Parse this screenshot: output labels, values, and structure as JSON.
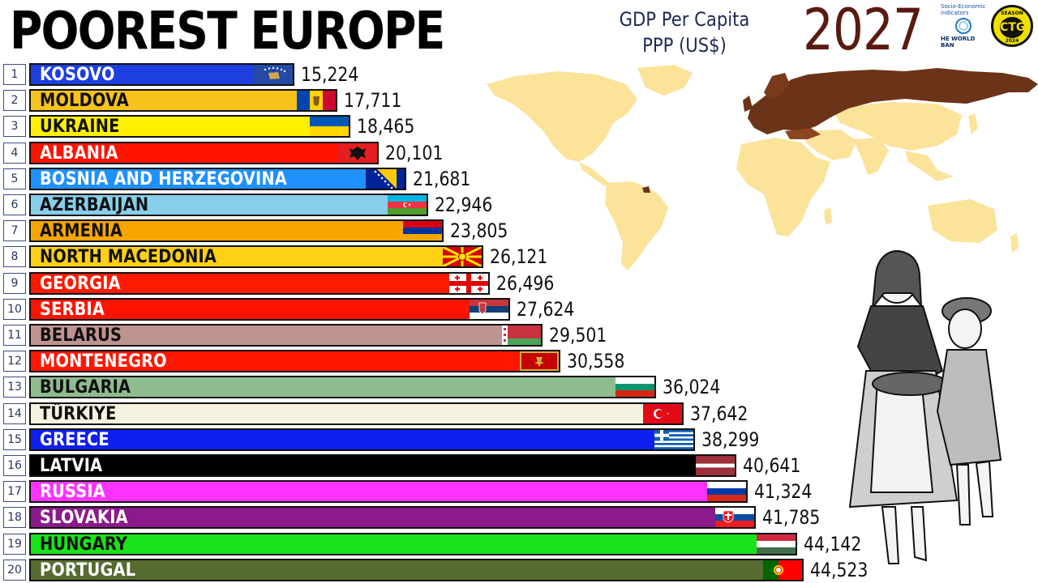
{
  "title": "POOREST EUROPE",
  "subtitle_line1": "GDP Per Capita",
  "subtitle_line2": "PPP (US$)",
  "year": "2027",
  "logos": {
    "worldbank_line1": "Socio-Economic",
    "worldbank_line2": "indicators",
    "worldbank_name": "HE WORLD BAN",
    "season_top": "SEASON",
    "season_mid": "CTG",
    "season_bottom": "2024"
  },
  "colors": {
    "map_land": "#fbe39a",
    "map_highlight": "#6b3318",
    "year": "#5a1a10",
    "subtitle": "#1e2a55"
  },
  "chart_data": {
    "type": "bar",
    "orientation": "horizontal",
    "title": "POOREST EUROPE",
    "subtitle": "GDP Per Capita PPP (US$)",
    "period": "2027",
    "xlim": [
      0,
      44523
    ],
    "categories": [
      "KOSOVO",
      "MOLDOVA",
      "UKRAINE",
      "ALBANIA",
      "BOSNIA AND HERZEGOVINA",
      "AZERBAIJAN",
      "ARMENIA",
      "NORTH MACEDONIA",
      "GEORGIA",
      "SERBIA",
      "BELARUS",
      "MONTENEGRO",
      "BULGARIA",
      "TÜRKIYE",
      "GREECE",
      "LATVIA",
      "RUSSIA",
      "SLOVAKIA",
      "HUNGARY",
      "PORTUGAL"
    ],
    "ranks": [
      "1",
      "2",
      "3",
      "4",
      "5",
      "6",
      "7",
      "8",
      "9",
      "10",
      "11",
      "12",
      "13",
      "14",
      "15",
      "16",
      "17",
      "18",
      "19",
      "20"
    ],
    "values": [
      15224,
      17711,
      18465,
      20101,
      21681,
      22946,
      23805,
      26121,
      26496,
      27624,
      29501,
      30558,
      36024,
      37642,
      38299,
      40641,
      41324,
      41785,
      44142,
      44523
    ],
    "value_labels": [
      "15,224",
      "17,711",
      "18,465",
      "20,101",
      "21,681",
      "22,946",
      "23,805",
      "26,121",
      "26,496",
      "27,624",
      "29,501",
      "30,558",
      "36,024",
      "37,642",
      "38,299",
      "40,641",
      "41,324",
      "41,785",
      "44,142",
      "44,523"
    ],
    "bar_colors": [
      "#1d3fe0",
      "#f8c21c",
      "#fff000",
      "#ff1200",
      "#1e90ff",
      "#87ceeb",
      "#f7a500",
      "#ffd015",
      "#ff1900",
      "#ff1200",
      "#bf9490",
      "#ff1600",
      "#8fbc8f",
      "#f5f2e0",
      "#0f1ff0",
      "#000000",
      "#ff33ff",
      "#8b1a8b",
      "#19e319",
      "#556b2f"
    ],
    "label_colors": [
      "#ffffff",
      "#111111",
      "#111111",
      "#ffffff",
      "#ffffff",
      "#111111",
      "#111111",
      "#111111",
      "#ffffff",
      "#ffffff",
      "#111111",
      "#ffffff",
      "#111111",
      "#111111",
      "#ffffff",
      "#ffffff",
      "#ffffff",
      "#ffffff",
      "#111111",
      "#ffffff"
    ],
    "flags": [
      "kosovo-flag",
      "moldova-flag",
      "ukraine-flag",
      "albania-flag",
      "bosnia-flag",
      "azerbaijan-flag",
      "armenia-flag",
      "north-macedonia-flag",
      "georgia-flag",
      "serbia-flag",
      "belarus-flag",
      "montenegro-flag",
      "bulgaria-flag",
      "turkiye-flag",
      "greece-flag",
      "latvia-flag",
      "russia-flag",
      "slovakia-flag",
      "hungary-flag",
      "portugal-flag"
    ]
  }
}
